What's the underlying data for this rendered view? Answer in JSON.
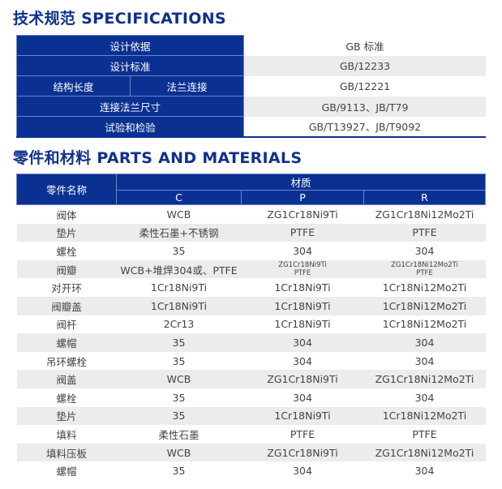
{
  "spec_title": "技术规范 SPECIFICATIONS",
  "spec_rows": [
    {
      "label": "设计依据",
      "value": "GB 标准"
    },
    {
      "label": "设计标准",
      "value": "GB/12233"
    },
    {
      "label_a": "结构长度",
      "label_b": "法兰连接",
      "value": "GB/12221"
    },
    {
      "label": "连接法兰尺寸",
      "value": "GB/9113、JB/T79"
    },
    {
      "label": "试验和检验",
      "value": "GB/T13927、JB/T9092"
    }
  ],
  "parts_title": "零件和材料 PARTS AND MATERIALS",
  "parts_header": {
    "name": "零件名称",
    "material": "材质",
    "c": "C",
    "p": "P",
    "r": "R"
  },
  "parts_rows": [
    [
      "阀体",
      "WCB",
      "ZG1Cr18Ni9Ti",
      "ZG1Cr18Ni12Mo2Ti"
    ],
    [
      "垫片",
      "柔性石墨+不锈钢",
      "PTFE",
      "PTFE"
    ],
    [
      "螺栓",
      "35",
      "304",
      "304"
    ],
    [
      "阀瓣",
      "WCB+堆焊304或、PTFE",
      "ZG1Cr18Ni9Ti",
      "ZG1Cr18Ni12Mo2Ti"
    ],
    [
      "对开环",
      "1Cr18Ni9Ti",
      "1Cr18Ni9Ti",
      "1Cr18Ni12Mo2Ti"
    ],
    [
      "阀瓣盖",
      "1Cr18Ni9Ti",
      "1Cr18Ni9Ti",
      "1Cr18Ni12Mo2Ti"
    ],
    [
      "阀杆",
      "2Cr13",
      "1Cr18Ni9Ti",
      "1Cr18Ni12Mo2Ti"
    ],
    [
      "螺帽",
      "35",
      "304",
      "304"
    ],
    [
      "吊环螺栓",
      "35",
      "304",
      "304"
    ],
    [
      "阀盖",
      "WCB",
      "ZG1Cr18Ni9Ti",
      "ZG1Cr18Ni12Mo2Ti"
    ],
    [
      "螺栓",
      "35",
      "304",
      "304"
    ],
    [
      "垫片",
      "35",
      "1Cr18Ni9Ti",
      "1Cr18Ni12Mo2Ti"
    ],
    [
      "填料",
      "柔性石墨",
      "PTFE",
      "PTFE"
    ],
    [
      "填料压板",
      "WCB",
      "ZG1Cr18Ni9Ti",
      "ZG1Cr18Ni12Mo2Ti"
    ],
    [
      "螺帽",
      "35",
      "304",
      "304"
    ]
  ],
  "disc_second_line": {
    "p": "PTFE",
    "r": "PTFE"
  }
}
